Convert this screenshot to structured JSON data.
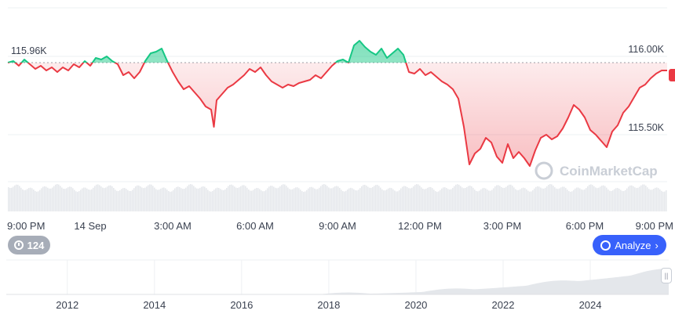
{
  "chart_data": {
    "type": "area",
    "baseline": 115.96,
    "baseline_label": "115.96K",
    "ytick_labels": [
      "116.00K",
      "115.50K"
    ],
    "yticks": [
      116.0,
      115.5
    ],
    "ylim": [
      115.2,
      116.3
    ],
    "xtick_labels": [
      "9:00 PM",
      "14 Sep",
      "3:00 AM",
      "6:00 AM",
      "9:00 AM",
      "12:00 PM",
      "3:00 PM",
      "6:00 PM",
      "9:00 PM"
    ],
    "x_range_hours": [
      0,
      24
    ],
    "series": [
      {
        "values": [
          [
            0,
            115.96
          ],
          [
            0.2,
            115.97
          ],
          [
            0.4,
            115.94
          ],
          [
            0.6,
            115.98
          ],
          [
            0.8,
            115.95
          ],
          [
            1.0,
            115.92
          ],
          [
            1.2,
            115.94
          ],
          [
            1.4,
            115.91
          ],
          [
            1.6,
            115.93
          ],
          [
            1.8,
            115.9
          ],
          [
            2.0,
            115.93
          ],
          [
            2.2,
            115.91
          ],
          [
            2.4,
            115.95
          ],
          [
            2.6,
            115.93
          ],
          [
            2.8,
            115.97
          ],
          [
            3.0,
            115.94
          ],
          [
            3.2,
            115.99
          ],
          [
            3.4,
            115.98
          ],
          [
            3.6,
            116.0
          ],
          [
            3.8,
            115.97
          ],
          [
            4.0,
            115.95
          ],
          [
            4.2,
            115.88
          ],
          [
            4.4,
            115.9
          ],
          [
            4.6,
            115.86
          ],
          [
            4.8,
            115.9
          ],
          [
            5.0,
            115.97
          ],
          [
            5.2,
            116.02
          ],
          [
            5.4,
            116.03
          ],
          [
            5.6,
            116.05
          ],
          [
            5.8,
            115.97
          ],
          [
            6.0,
            115.9
          ],
          [
            6.2,
            115.84
          ],
          [
            6.4,
            115.79
          ],
          [
            6.6,
            115.81
          ],
          [
            6.8,
            115.77
          ],
          [
            7.0,
            115.73
          ],
          [
            7.2,
            115.68
          ],
          [
            7.4,
            115.66
          ],
          [
            7.5,
            115.55
          ],
          [
            7.6,
            115.72
          ],
          [
            7.8,
            115.76
          ],
          [
            8.0,
            115.8
          ],
          [
            8.2,
            115.82
          ],
          [
            8.4,
            115.85
          ],
          [
            8.6,
            115.88
          ],
          [
            8.8,
            115.92
          ],
          [
            9.0,
            115.9
          ],
          [
            9.2,
            115.93
          ],
          [
            9.4,
            115.88
          ],
          [
            9.6,
            115.84
          ],
          [
            9.8,
            115.82
          ],
          [
            10.0,
            115.8
          ],
          [
            10.2,
            115.82
          ],
          [
            10.4,
            115.81
          ],
          [
            10.6,
            115.83
          ],
          [
            10.8,
            115.84
          ],
          [
            11.0,
            115.85
          ],
          [
            11.2,
            115.88
          ],
          [
            11.4,
            115.86
          ],
          [
            11.6,
            115.9
          ],
          [
            11.8,
            115.94
          ],
          [
            12.0,
            115.97
          ],
          [
            12.2,
            115.98
          ],
          [
            12.4,
            115.96
          ],
          [
            12.6,
            116.07
          ],
          [
            12.8,
            116.1
          ],
          [
            13.0,
            116.06
          ],
          [
            13.2,
            116.03
          ],
          [
            13.4,
            116.01
          ],
          [
            13.6,
            116.05
          ],
          [
            13.8,
            115.99
          ],
          [
            14.0,
            116.02
          ],
          [
            14.2,
            116.05
          ],
          [
            14.4,
            116.01
          ],
          [
            14.6,
            115.9
          ],
          [
            14.8,
            115.89
          ],
          [
            15.0,
            115.92
          ],
          [
            15.2,
            115.88
          ],
          [
            15.4,
            115.9
          ],
          [
            15.6,
            115.87
          ],
          [
            15.8,
            115.84
          ],
          [
            16.0,
            115.82
          ],
          [
            16.2,
            115.79
          ],
          [
            16.4,
            115.73
          ],
          [
            16.6,
            115.55
          ],
          [
            16.8,
            115.31
          ],
          [
            17.0,
            115.38
          ],
          [
            17.2,
            115.41
          ],
          [
            17.4,
            115.48
          ],
          [
            17.6,
            115.45
          ],
          [
            17.8,
            115.36
          ],
          [
            18.0,
            115.32
          ],
          [
            18.2,
            115.44
          ],
          [
            18.4,
            115.35
          ],
          [
            18.6,
            115.39
          ],
          [
            18.8,
            115.35
          ],
          [
            19.0,
            115.3
          ],
          [
            19.2,
            115.4
          ],
          [
            19.4,
            115.48
          ],
          [
            19.6,
            115.5
          ],
          [
            19.8,
            115.47
          ],
          [
            20.0,
            115.49
          ],
          [
            20.2,
            115.54
          ],
          [
            20.4,
            115.61
          ],
          [
            20.6,
            115.69
          ],
          [
            20.8,
            115.66
          ],
          [
            21.0,
            115.61
          ],
          [
            21.2,
            115.53
          ],
          [
            21.4,
            115.5
          ],
          [
            21.6,
            115.46
          ],
          [
            21.8,
            115.42
          ],
          [
            22.0,
            115.52
          ],
          [
            22.2,
            115.56
          ],
          [
            22.4,
            115.64
          ],
          [
            22.6,
            115.68
          ],
          [
            22.8,
            115.74
          ],
          [
            23.0,
            115.8
          ],
          [
            23.2,
            115.82
          ],
          [
            23.4,
            115.86
          ],
          [
            23.6,
            115.89
          ],
          [
            23.8,
            115.91
          ],
          [
            24.0,
            115.91
          ]
        ]
      }
    ],
    "colors": {
      "up": "#16c784",
      "down": "#ea3943"
    },
    "watermark": "CoinMarketCap",
    "navigator": {
      "year_labels": [
        "2012",
        "2014",
        "2016",
        "2018",
        "2020",
        "2022",
        "2024"
      ],
      "years": [
        2012,
        2014,
        2016,
        2018,
        2020,
        2022,
        2024
      ],
      "year_range": [
        2010.6,
        2025.8
      ]
    }
  },
  "controls": {
    "history_label": "124",
    "analyze_label": "Analyze"
  }
}
